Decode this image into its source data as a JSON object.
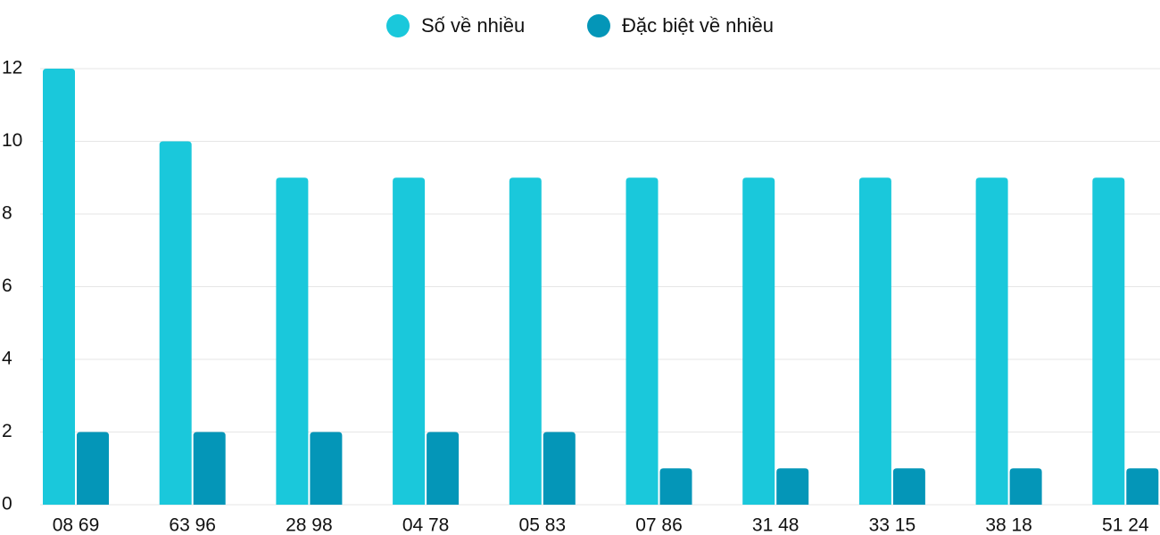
{
  "chart_data": {
    "type": "bar",
    "categories": [
      "08 69",
      "63 96",
      "28 98",
      "04 78",
      "05 83",
      "07 86",
      "31 48",
      "33 15",
      "38 18",
      "51 24"
    ],
    "series": [
      {
        "name": "Số về nhiều",
        "color": "#1ac8db",
        "values": [
          12,
          10,
          9,
          9,
          9,
          9,
          9,
          9,
          9,
          9
        ]
      },
      {
        "name": "Đặc biệt về nhiều",
        "color": "#0496b8",
        "values": [
          2,
          2,
          2,
          2,
          2,
          1,
          1,
          1,
          1,
          1
        ]
      }
    ],
    "ylim": [
      0,
      12
    ],
    "yticks": [
      0,
      2,
      4,
      6,
      8,
      10,
      12
    ],
    "grid": true,
    "legend": "top"
  }
}
